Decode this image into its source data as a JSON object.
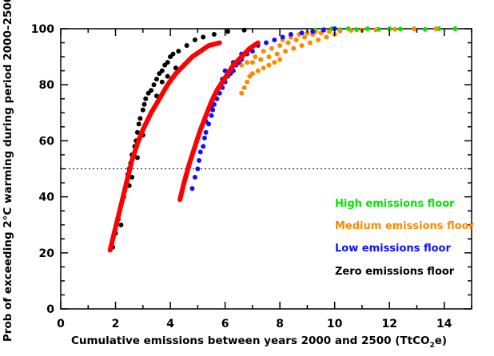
{
  "chart_data": {
    "type": "scatter",
    "title": "",
    "xlabel": "Cumulative emissions between years 2000 and 2500 (TtCO",
    "xlabel_sub": "2",
    "xlabel_end": "e)",
    "ylabel": "Prob of exceeding 2°C warming during period 2000–2500",
    "xlim": [
      0,
      15
    ],
    "ylim": [
      0,
      100
    ],
    "x_ticks": [
      0,
      2,
      4,
      6,
      8,
      10,
      12,
      14
    ],
    "y_ticks": [
      0,
      20,
      40,
      60,
      80,
      100
    ],
    "grid": false,
    "legend_position": "bottom-right",
    "reference_line": {
      "y": 50,
      "style": "dotted"
    },
    "series": [
      {
        "name": "High emissions floor",
        "color": "#00e600",
        "points": [
          [
            9.3,
            99.5
          ],
          [
            9.6,
            99.8
          ],
          [
            9.9,
            100
          ],
          [
            10.2,
            99.6
          ],
          [
            10.5,
            100
          ],
          [
            10.8,
            99.7
          ],
          [
            11.2,
            100
          ],
          [
            11.6,
            99.8
          ],
          [
            12.0,
            100
          ],
          [
            12.4,
            99.9
          ],
          [
            12.9,
            100
          ],
          [
            13.3,
            99.8
          ],
          [
            13.8,
            100
          ],
          [
            14.4,
            100
          ]
        ]
      },
      {
        "name": "Medium emissions floor",
        "color": "#ff8800",
        "points": [
          [
            6.6,
            77
          ],
          [
            6.7,
            79
          ],
          [
            6.8,
            81
          ],
          [
            6.9,
            83
          ],
          [
            7.0,
            84
          ],
          [
            7.2,
            85
          ],
          [
            7.4,
            86
          ],
          [
            7.6,
            87
          ],
          [
            7.8,
            88
          ],
          [
            8.0,
            89
          ],
          [
            7.0,
            88
          ],
          [
            7.3,
            89
          ],
          [
            7.6,
            90
          ],
          [
            7.9,
            91
          ],
          [
            8.2,
            92
          ],
          [
            8.5,
            93
          ],
          [
            8.8,
            94
          ],
          [
            9.1,
            95
          ],
          [
            9.4,
            96
          ],
          [
            9.7,
            97
          ],
          [
            10.0,
            98
          ],
          [
            6.6,
            87
          ],
          [
            6.8,
            88
          ],
          [
            7.1,
            90
          ],
          [
            7.4,
            92
          ],
          [
            7.7,
            93
          ],
          [
            8.0,
            94
          ],
          [
            8.3,
            95
          ],
          [
            8.6,
            96
          ],
          [
            8.9,
            97
          ],
          [
            9.2,
            98
          ],
          [
            9.5,
            98.5
          ],
          [
            9.8,
            99
          ],
          [
            10.2,
            99.2
          ],
          [
            10.6,
            99.4
          ],
          [
            11.0,
            99.5
          ],
          [
            11.5,
            99.6
          ],
          [
            12.2,
            99.8
          ],
          [
            12.9,
            99.9
          ],
          [
            13.7,
            100
          ],
          [
            8.1,
            96
          ],
          [
            8.4,
            97
          ],
          [
            8.7,
            98
          ],
          [
            9.0,
            98.5
          ],
          [
            9.3,
            99
          ]
        ]
      },
      {
        "name": "Low emissions floor",
        "color": "#1010ff",
        "points": [
          [
            4.8,
            43
          ],
          [
            4.9,
            47
          ],
          [
            5.0,
            50
          ],
          [
            5.05,
            53
          ],
          [
            5.1,
            56
          ],
          [
            5.2,
            58
          ],
          [
            5.25,
            61
          ],
          [
            5.3,
            63
          ],
          [
            5.4,
            66
          ],
          [
            5.5,
            69
          ],
          [
            5.55,
            71
          ],
          [
            5.6,
            73
          ],
          [
            5.7,
            75
          ],
          [
            5.8,
            77
          ],
          [
            5.9,
            79
          ],
          [
            6.0,
            81
          ],
          [
            6.1,
            83
          ],
          [
            6.2,
            84
          ],
          [
            6.3,
            85
          ],
          [
            6.4,
            87
          ],
          [
            6.5,
            88
          ],
          [
            6.6,
            89
          ],
          [
            6.8,
            91
          ],
          [
            7.0,
            92
          ],
          [
            7.2,
            94
          ],
          [
            7.5,
            95
          ],
          [
            7.8,
            96
          ],
          [
            8.1,
            97
          ],
          [
            8.4,
            98
          ],
          [
            8.8,
            98.5
          ],
          [
            9.2,
            99
          ],
          [
            9.6,
            99.5
          ],
          [
            10.0,
            100
          ],
          [
            5.3,
            67
          ],
          [
            5.5,
            72
          ],
          [
            5.6,
            76
          ],
          [
            5.9,
            82
          ],
          [
            6.0,
            85
          ],
          [
            6.3,
            88
          ],
          [
            6.6,
            91
          ]
        ]
      },
      {
        "name": "Zero emissions floor",
        "color": "#000000",
        "points": [
          [
            1.9,
            22
          ],
          [
            2.0,
            27
          ],
          [
            2.1,
            32
          ],
          [
            2.2,
            37
          ],
          [
            2.3,
            40
          ],
          [
            2.35,
            43
          ],
          [
            2.4,
            45
          ],
          [
            2.45,
            48
          ],
          [
            2.5,
            50
          ],
          [
            2.55,
            52
          ],
          [
            2.6,
            55
          ],
          [
            2.7,
            58
          ],
          [
            2.75,
            60
          ],
          [
            2.8,
            63
          ],
          [
            2.85,
            66
          ],
          [
            2.9,
            68
          ],
          [
            3.0,
            71
          ],
          [
            3.05,
            73
          ],
          [
            3.1,
            75
          ],
          [
            3.2,
            77
          ],
          [
            3.3,
            78
          ],
          [
            3.4,
            80
          ],
          [
            3.5,
            82
          ],
          [
            3.6,
            84
          ],
          [
            3.7,
            85
          ],
          [
            3.8,
            87
          ],
          [
            3.9,
            88
          ],
          [
            4.0,
            90
          ],
          [
            4.1,
            91
          ],
          [
            4.3,
            92
          ],
          [
            4.6,
            94
          ],
          [
            4.9,
            96
          ],
          [
            5.2,
            97
          ],
          [
            5.6,
            98
          ],
          [
            6.1,
            99
          ],
          [
            6.7,
            99.5
          ],
          [
            2.6,
            47
          ],
          [
            2.8,
            54
          ],
          [
            3.0,
            62
          ],
          [
            3.2,
            68
          ],
          [
            3.3,
            70
          ],
          [
            3.5,
            76
          ],
          [
            3.7,
            81
          ],
          [
            3.9,
            83
          ],
          [
            4.2,
            86
          ],
          [
            2.2,
            30
          ],
          [
            2.5,
            44
          ]
        ]
      }
    ],
    "fit_curves": [
      {
        "color": "#ff0000",
        "x": [
          1.8,
          2.0,
          2.2,
          2.4,
          2.6,
          2.8,
          3.0,
          3.3,
          3.6,
          3.9,
          4.2,
          4.5,
          4.8,
          5.1,
          5.4,
          5.8
        ],
        "y": [
          21,
          29,
          37,
          45,
          53,
          59,
          64,
          70,
          75,
          80,
          84,
          87,
          90,
          92,
          94,
          95
        ]
      },
      {
        "color": "#ff0000",
        "x": [
          4.35,
          4.5,
          4.7,
          4.9,
          5.1,
          5.3,
          5.5,
          5.7,
          5.9,
          6.1,
          6.3,
          6.5,
          6.7,
          6.9,
          7.2
        ],
        "y": [
          39,
          45,
          52,
          58,
          64,
          69,
          74,
          78,
          81,
          84,
          87,
          89,
          91,
          93,
          95
        ]
      }
    ]
  }
}
